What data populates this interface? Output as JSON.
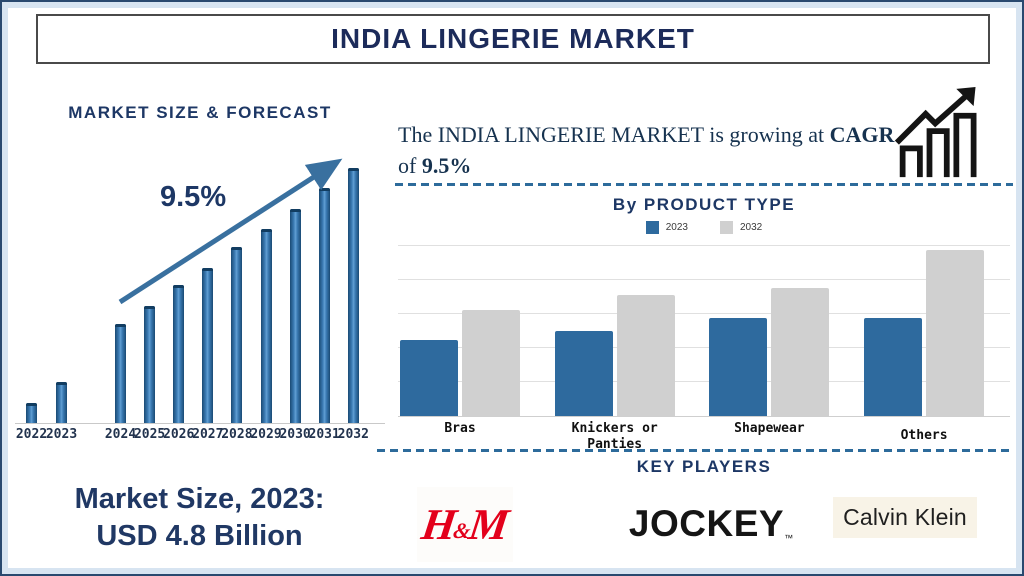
{
  "page": {
    "title": "INDIA LINGERIE MARKET"
  },
  "left": {
    "market_size_line1": "Market Size, 2023:",
    "market_size_line2": "USD 4.8 Billion"
  },
  "right": {
    "intro": {
      "line1": "The INDIA LINGERIE MARKET is growing at",
      "cagr": "CAGR",
      "of": "of",
      "value": "9.5%"
    },
    "icon": "growth-bars-arrow-icon",
    "key_players": {
      "title": "KEY PLAYERS",
      "hm": {
        "h": "H",
        "amp": "&",
        "m": "M"
      },
      "jockey": {
        "text": "JOCKEY",
        "tm": "™"
      },
      "calvin_klein": {
        "text": "Calvin Klein"
      }
    }
  },
  "colors": {
    "navy_text": "#1d3765",
    "title_navy": "#1c2b5a",
    "forecast_bar_blue": "#2f74ad",
    "arrow_blue": "#39709f",
    "product_bar_2023": "#2e6a9e",
    "product_bar_2032": "#d0d0d0",
    "dashed_line_blue": "#2d6b9b",
    "hm_red": "#e3001b",
    "calvin_klein_bg": "#f8f3e7",
    "frame_band_blue": "#d7e4f1"
  },
  "chart_data": [
    {
      "type": "bar",
      "title": "MARKET SIZE & FORECAST",
      "annotation": "9.5%",
      "categories": [
        "2022",
        "2023",
        "2024",
        "2025",
        "2026",
        "2027",
        "2028",
        "2029",
        "2030",
        "2031",
        "2032"
      ],
      "values": [
        8,
        16,
        39,
        46,
        54,
        61,
        69,
        76,
        84,
        92,
        100
      ],
      "units": "relative bar height index (2032 = 100); no numeric axis shown. 2023 market size = USD 4.8 Billion, CAGR 9.5%",
      "bar_color": "#2f74ad",
      "grid": false,
      "note": "visual gap between historical (2022-2023) and forecast (2024-2032) bars; upward trend arrow labeled 9.5%"
    },
    {
      "type": "bar",
      "title": "By PRODUCT TYPE",
      "categories": [
        "Bras",
        "Knickers or Panties",
        "Shapewear",
        "Others"
      ],
      "series": [
        {
          "name": "2023",
          "color": "#2e6a9e",
          "values": [
            46,
            51,
            59,
            59
          ]
        },
        {
          "name": "2032",
          "color": "#d0d0d0",
          "values": [
            64,
            73,
            77,
            100
          ]
        }
      ],
      "units": "relative bar height index (Others 2032 = 100); no numeric axis shown",
      "legend_position": "top",
      "grid": true
    }
  ]
}
